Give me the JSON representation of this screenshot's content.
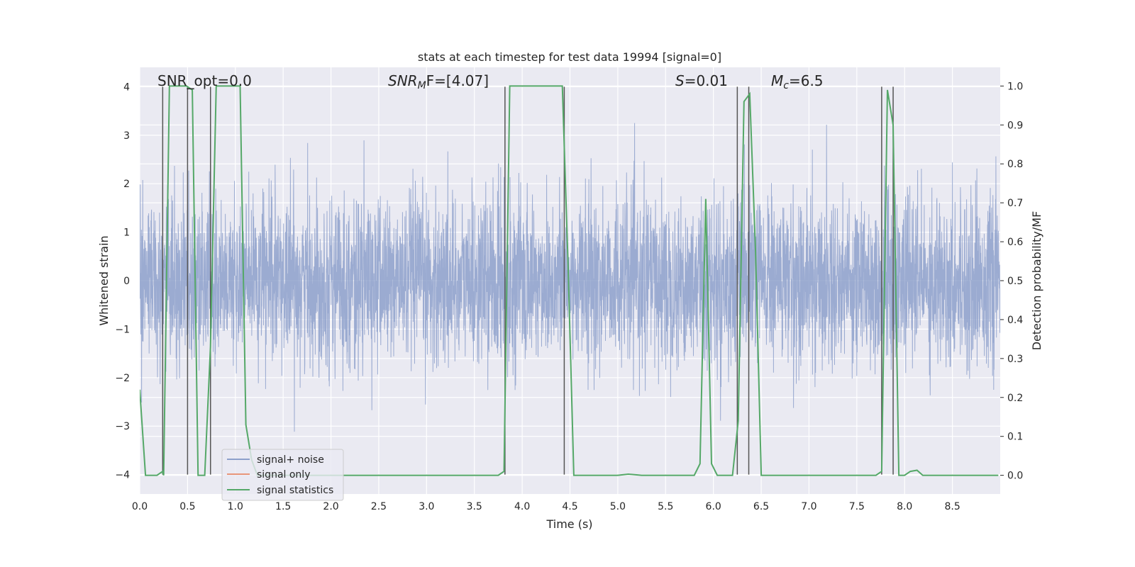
{
  "chart_data": {
    "type": "line",
    "title": "stats at each timestep for test data 19994 [signal=0]",
    "xlabel": "Time (s)",
    "ylabel": "Whitened strain",
    "y2label": "Detection probability/MF",
    "xlim": [
      0,
      9.0
    ],
    "ylim": [
      -4.4,
      4.4
    ],
    "y2lim": [
      -0.048,
      1.048
    ],
    "xticks": [
      0.0,
      0.5,
      1.0,
      1.5,
      2.0,
      2.5,
      3.0,
      3.5,
      4.0,
      4.5,
      5.0,
      5.5,
      6.0,
      6.5,
      7.0,
      7.5,
      8.0,
      8.5
    ],
    "xtick_labels": [
      "0.0",
      "0.5",
      "1.0",
      "1.5",
      "2.0",
      "2.5",
      "3.0",
      "3.5",
      "4.0",
      "4.5",
      "5.0",
      "5.5",
      "6.0",
      "6.5",
      "7.0",
      "7.5",
      "8.0",
      "8.5"
    ],
    "yticks": [
      -4,
      -3,
      -2,
      -1,
      0,
      1,
      2,
      3,
      4
    ],
    "ytick_labels": [
      "−4",
      "−3",
      "−2",
      "−1",
      "0",
      "1",
      "2",
      "3",
      "4"
    ],
    "y2ticks": [
      0.0,
      0.1,
      0.2,
      0.3,
      0.4,
      0.5,
      0.6,
      0.7,
      0.8,
      0.9,
      1.0
    ],
    "y2tick_labels": [
      "0.0",
      "0.1",
      "0.2",
      "0.3",
      "0.4",
      "0.5",
      "0.6",
      "0.7",
      "0.8",
      "0.9",
      "1.0"
    ],
    "grid": true,
    "legend_position": "lower-left",
    "annotations": {
      "snr_opt": "SNR_opt=0.0",
      "snr_mf_main": "SNR",
      "snr_mf_sub": "M",
      "snr_mf_tail": "F=[4.07]",
      "s_main": "S",
      "s_tail": "=0.01",
      "mc_main": "M",
      "mc_sub": "c",
      "mc_tail": "=6.5"
    },
    "series": [
      {
        "name": "signal+ noise",
        "color": "#8da0cb",
        "kind": "noise",
        "sample_rate": 512,
        "envelope": 1.6,
        "peak_max": 3.4,
        "peak_min": -3.9
      },
      {
        "name": "signal only",
        "color": "#e8967a",
        "kind": "flat",
        "values": []
      },
      {
        "name": "signal statistics",
        "color": "#55a868",
        "kind": "line",
        "axis": "right",
        "x": [
          0.0,
          0.06,
          0.18,
          0.24,
          0.25,
          0.31,
          0.37,
          0.43,
          0.49,
          0.55,
          0.61,
          0.68,
          0.74,
          0.8,
          0.86,
          0.92,
          0.98,
          1.05,
          1.11,
          1.17,
          1.23,
          1.29,
          1.35,
          1.41,
          1.47,
          3.75,
          3.81,
          3.87,
          3.93,
          3.99,
          4.42,
          4.48,
          4.54,
          4.6,
          5.0,
          5.11,
          5.25,
          5.8,
          5.86,
          5.92,
          5.98,
          6.04,
          6.1,
          6.2,
          6.26,
          6.32,
          6.38,
          6.44,
          6.5,
          6.56,
          7.7,
          7.76,
          7.82,
          7.88,
          7.94,
          8.0,
          8.06,
          8.13,
          8.19,
          8.98
        ],
        "values": [
          0.22,
          0.0,
          0.0,
          0.01,
          0.0,
          1.0,
          1.0,
          1.0,
          1.0,
          0.99,
          0.0,
          0.0,
          0.33,
          1.0,
          1.0,
          1.0,
          1.0,
          1.0,
          0.13,
          0.04,
          0.0,
          0.0,
          0.0,
          0.0,
          0.0,
          0.0,
          0.01,
          1.0,
          1.0,
          1.0,
          1.0,
          0.54,
          0.0,
          0.0,
          0.0,
          0.003,
          0.0,
          0.0,
          0.03,
          0.71,
          0.03,
          0.0,
          0.0,
          0.0,
          0.14,
          0.96,
          0.98,
          0.58,
          0.0,
          0.0,
          0.0,
          0.01,
          0.99,
          0.9,
          0.0,
          0.0,
          0.01,
          0.013,
          0.0,
          0.0
        ]
      },
      {
        "name": "markers",
        "color": "#555555",
        "kind": "vlines",
        "x": [
          0.24,
          0.5,
          0.74,
          3.82,
          4.44,
          6.25,
          6.37,
          7.76,
          7.88
        ],
        "y_from": -4.0,
        "y_to": 4.0
      }
    ]
  }
}
